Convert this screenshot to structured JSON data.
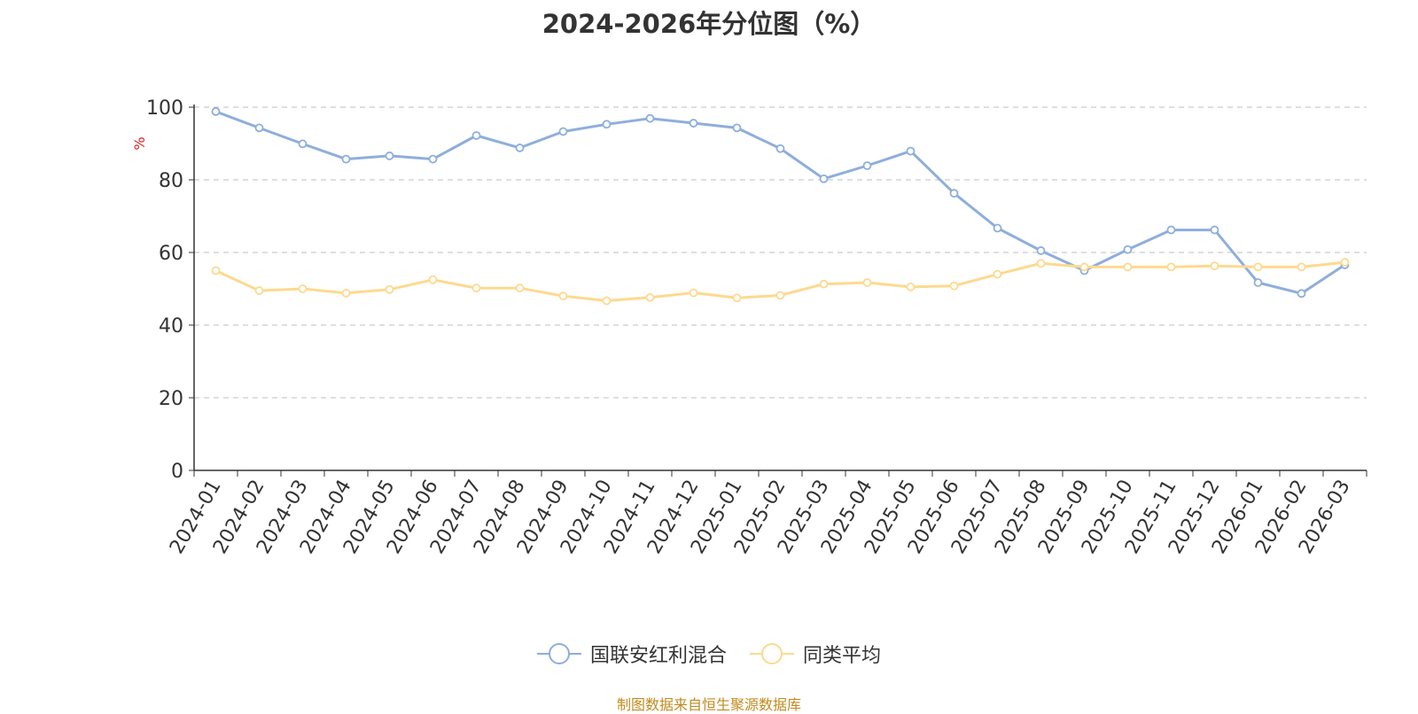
{
  "title": "2024-2026年分位图（%）",
  "source_note": "制图数据来自恒生聚源数据库",
  "colors": {
    "series_1": "#8eaedc",
    "series_2": "#fdd98f",
    "ylabel": "#e02020",
    "grid": "#cccccc",
    "axis": "#333333"
  },
  "chart_data": {
    "type": "line",
    "ylabel": "%",
    "ylim": [
      0,
      100
    ],
    "yticks": [
      0,
      20,
      40,
      60,
      80,
      100
    ],
    "grid": "horizontal dashed",
    "legend_position": "bottom",
    "categories": [
      "2024-01",
      "2024-02",
      "2024-03",
      "2024-04",
      "2024-05",
      "2024-06",
      "2024-07",
      "2024-08",
      "2024-09",
      "2024-10",
      "2024-11",
      "2024-12",
      "2025-01",
      "2025-02",
      "2025-03",
      "2025-04",
      "2025-05",
      "2025-06",
      "2025-07",
      "2025-08",
      "2025-09",
      "2025-10",
      "2025-11",
      "2025-12",
      "2026-01",
      "2026-02",
      "2026-03"
    ],
    "series": [
      {
        "name": "国联安红利混合",
        "color": "#8eaedc",
        "values": [
          98.8,
          94.3,
          89.9,
          85.7,
          86.6,
          85.7,
          92.2,
          88.8,
          93.3,
          95.3,
          96.9,
          95.6,
          94.3,
          88.6,
          80.3,
          83.9,
          87.9,
          76.3,
          66.7,
          60.5,
          55.0,
          60.8,
          66.2,
          66.2,
          51.7,
          48.7,
          56.6
        ]
      },
      {
        "name": "同类平均",
        "color": "#fdd98f",
        "values": [
          55.0,
          49.5,
          50.0,
          48.8,
          49.8,
          52.5,
          50.2,
          50.2,
          48.0,
          46.7,
          47.6,
          48.9,
          47.5,
          48.2,
          51.3,
          51.7,
          50.5,
          50.8,
          54.0,
          57.0,
          56.0,
          56.0,
          56.0,
          56.3,
          56.0,
          56.0,
          57.3
        ]
      }
    ]
  }
}
